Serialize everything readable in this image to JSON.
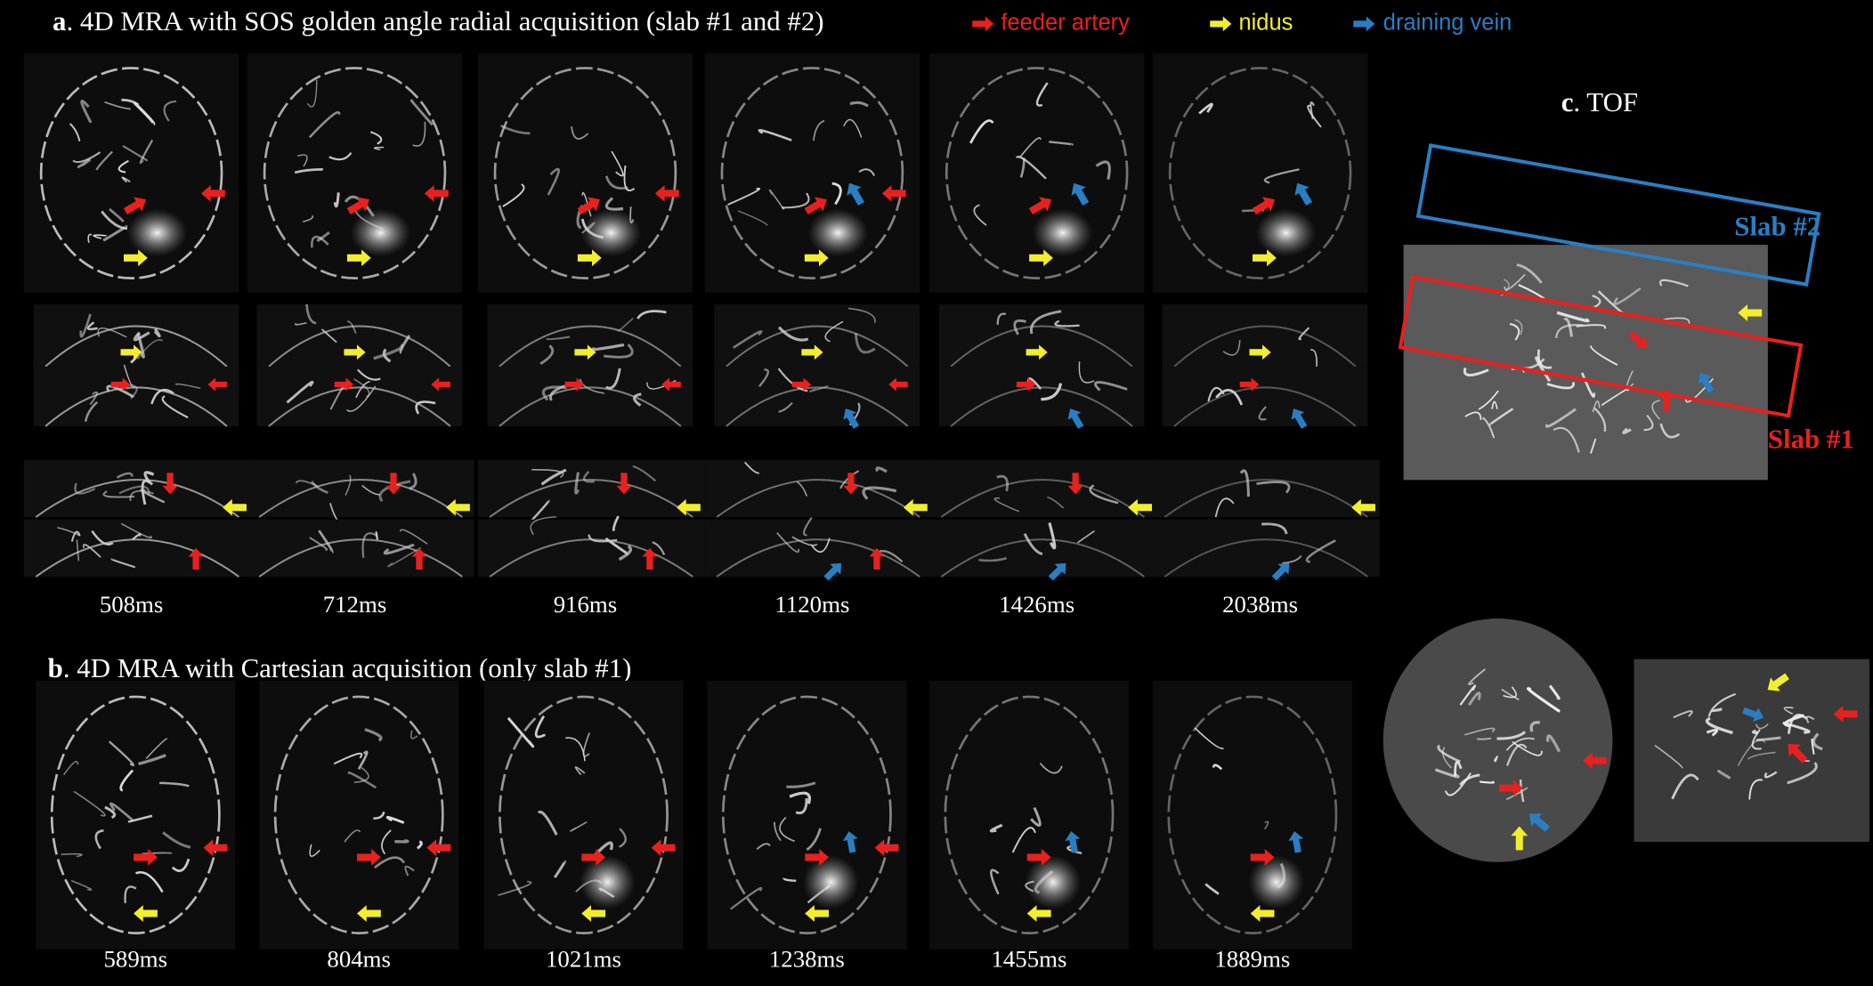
{
  "panel_a": {
    "label": "a",
    "title": ". 4D MRA with SOS golden angle radial acquisition (slab #1 and #2)",
    "legend": [
      "feeder artery",
      "nidus",
      "draining vein"
    ],
    "times": [
      "508ms",
      "712ms",
      "916ms",
      "1120ms",
      "1426ms",
      "2038ms"
    ]
  },
  "panel_b": {
    "label": "b",
    "title": ". 4D MRA with Cartesian acquisition  (only slab #1)",
    "times": [
      "589ms",
      "804ms",
      "1021ms",
      "1238ms",
      "1455ms",
      "1889ms"
    ]
  },
  "panel_c": {
    "label": "c",
    "title": ". TOF",
    "slab_labels": [
      "Slab #2",
      "Slab #1"
    ]
  }
}
